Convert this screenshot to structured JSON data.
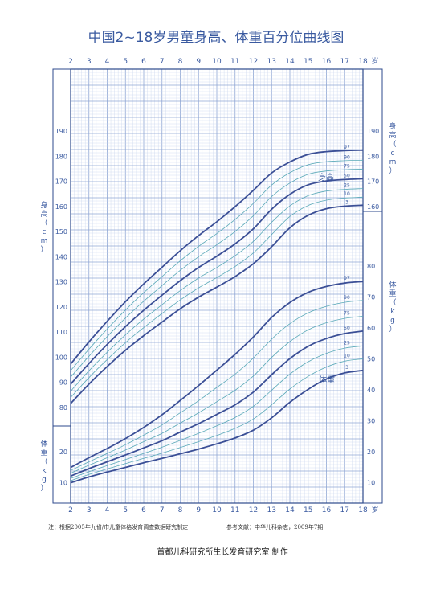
{
  "page": {
    "title": "中国2~18岁男童身高、体重百分位曲线图",
    "note_left": "注：根据2005年九省/市儿童体格发育调查数据研究制定",
    "note_right": "参考文献：中华儿科杂志，2009年7期",
    "credit": "首都儿科研究所生长发育研究室  制作"
  },
  "colors": {
    "grid_major": "#8fa6d4",
    "grid_minor": "#c9d6ee",
    "curve_major": "#3b4f96",
    "curve_minor": "#5aa9b8",
    "text": "#3a5aa0"
  },
  "chart_data": {
    "type": "line",
    "title": "中国2~18岁男童身高、体重百分位曲线图",
    "xlabel": "岁",
    "x": [
      2,
      3,
      4,
      5,
      6,
      7,
      8,
      9,
      10,
      11,
      12,
      13,
      14,
      15,
      16,
      17,
      18
    ],
    "xlim": [
      2,
      18
    ],
    "x_ticks": [
      "2",
      "3",
      "4",
      "5",
      "6",
      "7",
      "8",
      "9",
      "10",
      "11",
      "12",
      "13",
      "14",
      "15",
      "16",
      "17",
      "18"
    ],
    "height": {
      "label": "身高",
      "ylabel_left": "身高（cm）",
      "ylabel_right": "身高（cm）",
      "unit": "cm",
      "ylim": [
        75,
        190
      ],
      "left_ticks": [
        80,
        90,
        100,
        110,
        120,
        130,
        140,
        150,
        160,
        170,
        180,
        190
      ],
      "right_ticks": [
        160,
        170,
        180,
        190
      ],
      "series": [
        {
          "name": "3",
          "major": true,
          "values": [
            81.6,
            89.3,
            96.3,
            102.8,
            108.6,
            114.0,
            119.3,
            123.9,
            127.9,
            132.1,
            137.2,
            144.0,
            151.5,
            156.5,
            159.1,
            160.1,
            160.5
          ]
        },
        {
          "name": "10",
          "major": false,
          "values": [
            84.0,
            91.9,
            99.1,
            105.8,
            111.8,
            117.4,
            122.8,
            127.6,
            131.7,
            136.1,
            141.5,
            148.8,
            156.0,
            160.4,
            162.5,
            163.3,
            163.7
          ]
        },
        {
          "name": "25",
          "major": false,
          "values": [
            86.5,
            94.6,
            102.0,
            108.9,
            115.2,
            120.9,
            126.5,
            131.5,
            135.7,
            140.4,
            146.1,
            153.7,
            160.2,
            164.3,
            166.1,
            166.8,
            167.1
          ]
        },
        {
          "name": "50",
          "major": true,
          "values": [
            89.3,
            97.5,
            105.1,
            112.2,
            118.7,
            124.7,
            130.5,
            135.7,
            140.2,
            145.1,
            151.1,
            158.9,
            164.8,
            168.6,
            170.1,
            170.7,
            171.0
          ]
        },
        {
          "name": "75",
          "major": false,
          "values": [
            92.1,
            100.4,
            108.2,
            115.6,
            122.3,
            128.5,
            134.6,
            140.0,
            144.8,
            150.0,
            156.3,
            163.9,
            169.3,
            172.8,
            174.1,
            174.6,
            174.8
          ]
        },
        {
          "name": "90",
          "major": false,
          "values": [
            94.7,
            103.2,
            111.2,
            118.8,
            125.7,
            132.1,
            138.4,
            144.1,
            149.2,
            154.8,
            161.2,
            168.5,
            173.4,
            176.6,
            177.8,
            178.2,
            178.4
          ]
        },
        {
          "name": "97",
          "major": true,
          "values": [
            97.3,
            106.1,
            114.3,
            122.1,
            129.2,
            135.8,
            142.4,
            148.4,
            153.9,
            159.9,
            166.4,
            173.3,
            177.7,
            180.7,
            181.8,
            182.2,
            182.4
          ]
        }
      ]
    },
    "weight": {
      "label": "体重",
      "ylabel_left": "体重（kg）",
      "ylabel_right": "体重（kg）",
      "unit": "kg",
      "ylim": [
        5,
        90
      ],
      "left_ticks": [
        10,
        20
      ],
      "right_ticks": [
        10,
        20,
        30,
        40,
        50,
        60,
        70,
        80
      ],
      "series": [
        {
          "name": "3",
          "major": true,
          "values": [
            10.0,
            11.9,
            13.5,
            15.0,
            16.5,
            17.9,
            19.4,
            20.9,
            22.6,
            24.5,
            27.0,
            31.0,
            36.0,
            40.2,
            43.5,
            45.5,
            46.3
          ]
        },
        {
          "name": "10",
          "major": false,
          "values": [
            10.7,
            12.7,
            14.5,
            16.2,
            17.9,
            19.6,
            21.4,
            23.3,
            25.3,
            27.6,
            30.6,
            35.2,
            40.3,
            44.4,
            47.4,
            49.3,
            50.0
          ]
        },
        {
          "name": "25",
          "major": false,
          "values": [
            11.4,
            13.6,
            15.6,
            17.5,
            19.5,
            21.5,
            23.7,
            26.0,
            28.4,
            31.1,
            34.7,
            39.9,
            45.1,
            49.1,
            51.8,
            53.5,
            54.2
          ]
        },
        {
          "name": "50",
          "major": true,
          "values": [
            12.2,
            14.6,
            16.8,
            19.0,
            21.3,
            23.6,
            26.4,
            29.1,
            32.1,
            35.2,
            39.3,
            44.9,
            50.1,
            54.1,
            56.6,
            58.2,
            59.0
          ]
        },
        {
          "name": "75",
          "major": false,
          "values": [
            13.1,
            15.7,
            18.1,
            20.6,
            23.3,
            26.0,
            29.3,
            32.6,
            36.2,
            39.9,
            44.5,
            50.5,
            55.6,
            59.4,
            61.7,
            63.1,
            63.8
          ]
        },
        {
          "name": "90",
          "major": false,
          "values": [
            14.0,
            16.8,
            19.5,
            22.3,
            25.4,
            28.7,
            32.6,
            36.5,
            40.8,
            45.1,
            50.3,
            56.4,
            61.4,
            64.9,
            67.0,
            68.3,
            68.9
          ]
        },
        {
          "name": "97",
          "major": true,
          "values": [
            15.0,
            18.1,
            21.1,
            24.3,
            27.9,
            32.0,
            36.6,
            41.4,
            46.4,
            51.5,
            57.1,
            63.4,
            68.2,
            71.5,
            73.4,
            74.5,
            75.0
          ]
        }
      ]
    }
  }
}
